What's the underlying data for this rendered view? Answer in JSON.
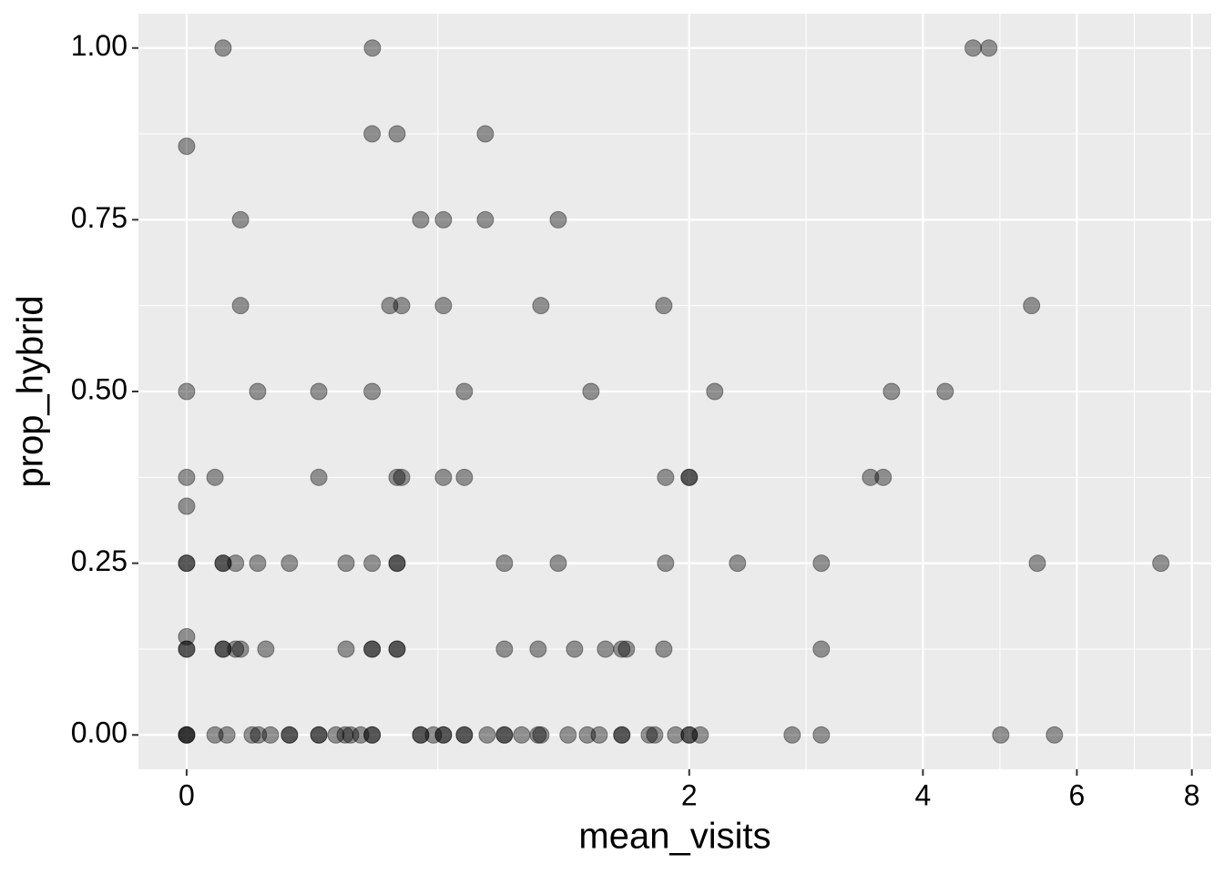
{
  "chart_data": {
    "type": "scatter",
    "x_label": "mean_visits",
    "y_label": "prop_hybrid",
    "xscale": "log1p",
    "xlim": [
      -0.1,
      8.39
    ],
    "xticks": [
      0,
      2,
      4,
      6,
      8
    ],
    "ylim": [
      -0.05,
      1.05
    ],
    "yticks": [
      {
        "value": 0,
        "label": "0.00"
      },
      {
        "value": 0.25,
        "label": "0.25"
      },
      {
        "value": 0.5,
        "label": "0.50"
      },
      {
        "value": 0.75,
        "label": "0.75"
      },
      {
        "value": 1,
        "label": "1.00"
      }
    ],
    "grid": true,
    "color": "#000000",
    "opacity": 0.4,
    "x": [
      0.083,
      0.501,
      4.58,
      4.775,
      0,
      0.5,
      0.584,
      0.921,
      0.125,
      0.668,
      0.753,
      0.921,
      1.253,
      0.125,
      0.559,
      0.6,
      0.753,
      1.169,
      1.838,
      5.34,
      0,
      0.168,
      0.335,
      0.5,
      0.835,
      1.42,
      2.172,
      3.668,
      4.249,
      0,
      0.064,
      0.335,
      0.584,
      0.6,
      0.753,
      0.835,
      1.849,
      2.0,
      2.0,
      3.459,
      3.584,
      0,
      0,
      0,
      0.083,
      0.083,
      0.113,
      0.168,
      0.252,
      0.417,
      0.5,
      0.584,
      0.584,
      1.003,
      1.253,
      1.849,
      2.334,
      3.004,
      5.42,
      7.41,
      0,
      0,
      0,
      0.083,
      0.083,
      0.113,
      0.125,
      0.189,
      0.417,
      0.5,
      0.5,
      0.584,
      0.584,
      1.003,
      1.156,
      1.335,
      1.498,
      1.589,
      1.615,
      1.838,
      3.004,
      0,
      0,
      0,
      0.064,
      0.092,
      0.154,
      0.17,
      0.201,
      0.252,
      0.252,
      0.335,
      0.335,
      0.386,
      0.414,
      0.431,
      0.463,
      0.5,
      0.5,
      0.668,
      0.668,
      0.715,
      0.753,
      0.753,
      0.835,
      0.835,
      0.929,
      1.003,
      1.003,
      1.08,
      1.156,
      1.169,
      1.302,
      1.401,
      1.464,
      1.589,
      1.589,
      1.749,
      1.782,
      1.912,
      2.0,
      2.0,
      2.073,
      2.757,
      3.004,
      4.927,
      5.665
    ],
    "values": [
      1,
      1,
      1,
      1,
      0.857,
      0.875,
      0.875,
      0.875,
      0.75,
      0.75,
      0.75,
      0.75,
      0.75,
      0.625,
      0.625,
      0.625,
      0.625,
      0.625,
      0.625,
      0.625,
      0.5,
      0.5,
      0.5,
      0.5,
      0.5,
      0.5,
      0.5,
      0.5,
      0.5,
      0.375,
      0.375,
      0.375,
      0.375,
      0.375,
      0.375,
      0.375,
      0.375,
      0.375,
      0.375,
      0.375,
      0.375,
      0.333,
      0.25,
      0.25,
      0.25,
      0.25,
      0.25,
      0.25,
      0.25,
      0.25,
      0.25,
      0.25,
      0.25,
      0.25,
      0.25,
      0.25,
      0.25,
      0.25,
      0.25,
      0.25,
      0.143,
      0.125,
      0.125,
      0.125,
      0.125,
      0.125,
      0.125,
      0.125,
      0.125,
      0.125,
      0.125,
      0.125,
      0.125,
      0.125,
      0.125,
      0.125,
      0.125,
      0.125,
      0.125,
      0.125,
      0.125,
      0,
      0,
      0,
      0,
      0,
      0,
      0,
      0,
      0,
      0,
      0,
      0,
      0,
      0,
      0,
      0,
      0,
      0,
      0,
      0,
      0,
      0,
      0,
      0,
      0,
      0,
      0,
      0,
      0,
      0,
      0,
      0,
      0,
      0,
      0,
      0,
      0,
      0,
      0,
      0,
      0,
      0,
      0,
      0,
      0,
      0
    ]
  }
}
